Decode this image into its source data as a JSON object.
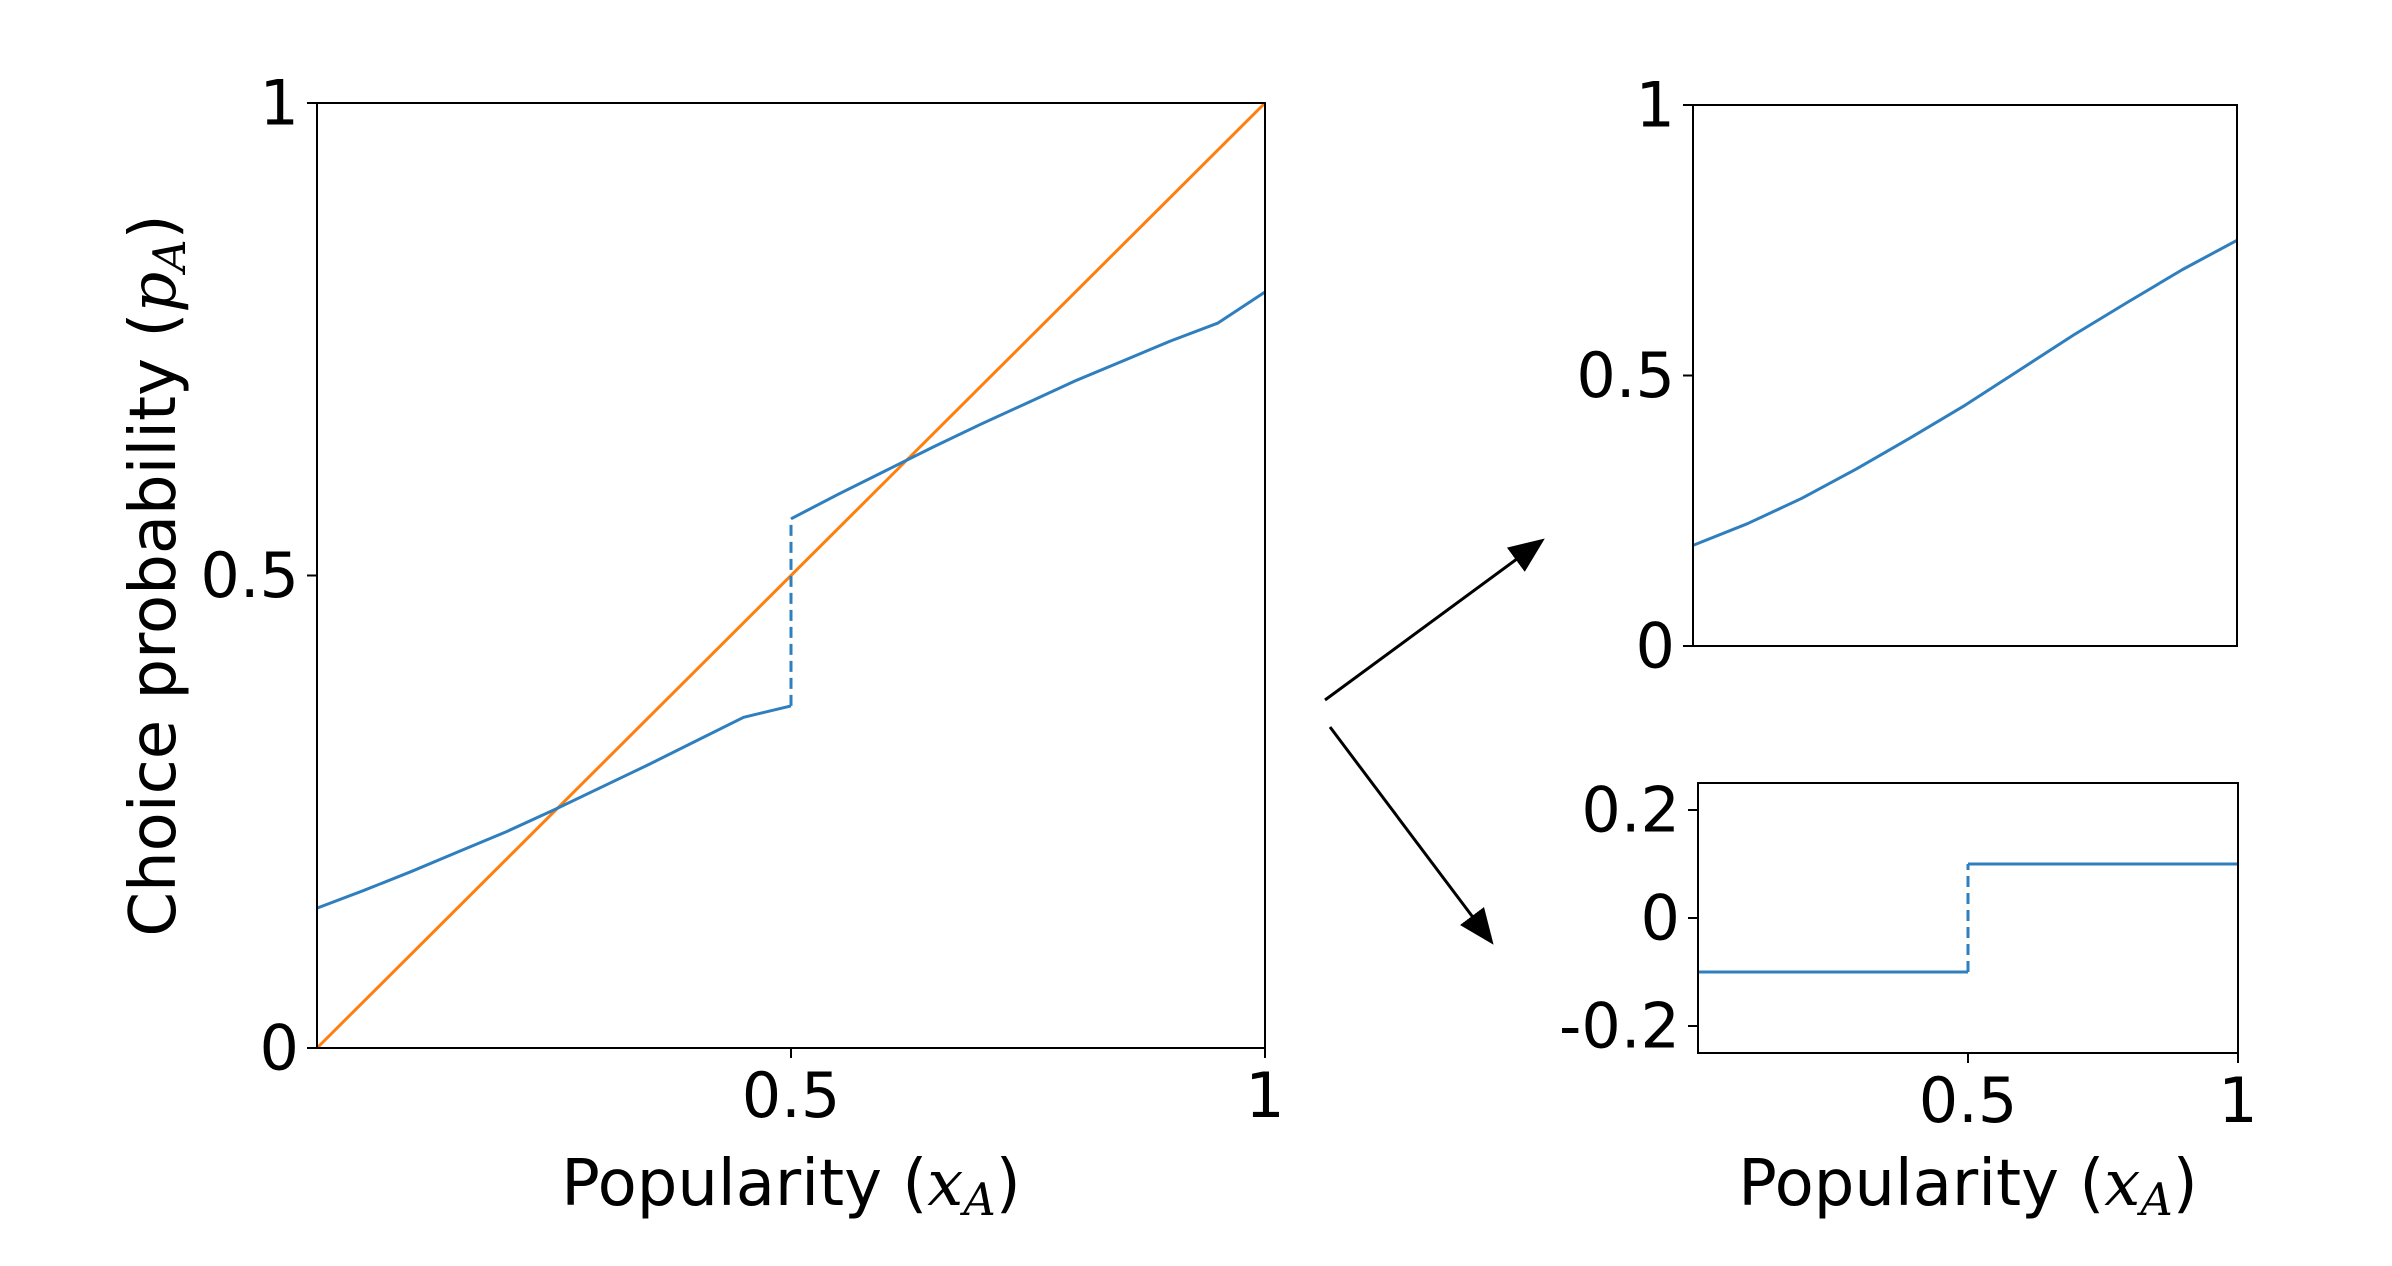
{
  "colors": {
    "series_blue": "#2f7fbf",
    "series_orange": "#ff7f0e",
    "axes": "#000000",
    "arrow": "#000000"
  },
  "icons": {
    "upper_arrow": "arrow-up-right-icon",
    "lower_arrow": "arrow-down-right-icon"
  },
  "chart_data": [
    {
      "id": "main",
      "type": "line",
      "xlabel_text": "Popularity (",
      "xlabel_math": "x",
      "xlabel_sub": "A",
      "xlabel_close": ")",
      "ylabel_text": "Choice probability (",
      "ylabel_math": "p",
      "ylabel_sub": "A",
      "ylabel_close": ")",
      "xlim": [
        0,
        1
      ],
      "ylim": [
        0,
        1
      ],
      "x_ticks": [
        {
          "value": 0.5,
          "label": "0.5"
        },
        {
          "value": 1,
          "label": "1"
        }
      ],
      "y_ticks": [
        {
          "value": 0,
          "label": "0"
        },
        {
          "value": 0.5,
          "label": "0.5"
        },
        {
          "value": 1,
          "label": "1"
        }
      ],
      "grid": false,
      "series": [
        {
          "color": "#ff7f0e",
          "style": "solid",
          "x": [
            0,
            1
          ],
          "y": [
            0,
            1
          ]
        },
        {
          "color": "#2f7fbf",
          "style": "solid",
          "x": [
            0,
            0.05,
            0.1,
            0.15,
            0.2,
            0.25,
            0.3,
            0.35,
            0.4,
            0.45,
            0.5
          ],
          "y": [
            0.148,
            0.167,
            0.187,
            0.208,
            0.229,
            0.252,
            0.276,
            0.3,
            0.325,
            0.35,
            0.362
          ]
        },
        {
          "color": "#2f7fbf",
          "style": "dashed",
          "x": [
            0.5,
            0.5
          ],
          "y": [
            0.362,
            0.56
          ]
        },
        {
          "color": "#2f7fbf",
          "style": "solid",
          "x": [
            0.5,
            0.55,
            0.6,
            0.65,
            0.7,
            0.75,
            0.8,
            0.85,
            0.9,
            0.95,
            1
          ],
          "y": [
            0.56,
            0.586,
            0.611,
            0.636,
            0.66,
            0.683,
            0.706,
            0.727,
            0.748,
            0.767,
            0.8
          ]
        }
      ]
    },
    {
      "id": "top-right",
      "type": "line",
      "xlim": [
        0,
        1
      ],
      "ylim": [
        0,
        1
      ],
      "x_ticks": [],
      "y_ticks": [
        {
          "value": 0,
          "label": "0"
        },
        {
          "value": 0.5,
          "label": "0.5"
        },
        {
          "value": 1,
          "label": "1"
        }
      ],
      "grid": false,
      "series": [
        {
          "color": "#2f7fbf",
          "style": "solid",
          "x": [
            0,
            0.1,
            0.2,
            0.3,
            0.4,
            0.5,
            0.6,
            0.7,
            0.8,
            0.9,
            1
          ],
          "y": [
            0.186,
            0.226,
            0.273,
            0.327,
            0.385,
            0.445,
            0.51,
            0.575,
            0.636,
            0.696,
            0.75
          ]
        }
      ]
    },
    {
      "id": "bottom-right",
      "type": "line",
      "xlabel_text": "Popularity (",
      "xlabel_math": "x",
      "xlabel_sub": "A",
      "xlabel_close": ")",
      "xlim": [
        0,
        1
      ],
      "ylim": [
        -0.25,
        0.25
      ],
      "x_ticks": [
        {
          "value": 0.5,
          "label": "0.5"
        },
        {
          "value": 1,
          "label": "1"
        }
      ],
      "y_ticks": [
        {
          "value": -0.2,
          "label": "-0.2"
        },
        {
          "value": 0,
          "label": "0"
        },
        {
          "value": 0.2,
          "label": "0.2"
        }
      ],
      "grid": false,
      "series": [
        {
          "color": "#2f7fbf",
          "style": "solid",
          "x": [
            0,
            0.5
          ],
          "y": [
            -0.1,
            -0.1
          ]
        },
        {
          "color": "#2f7fbf",
          "style": "dashed",
          "x": [
            0.5,
            0.5
          ],
          "y": [
            -0.1,
            0.1
          ]
        },
        {
          "color": "#2f7fbf",
          "style": "solid",
          "x": [
            0.5,
            1
          ],
          "y": [
            0.1,
            0.1
          ]
        }
      ]
    }
  ]
}
